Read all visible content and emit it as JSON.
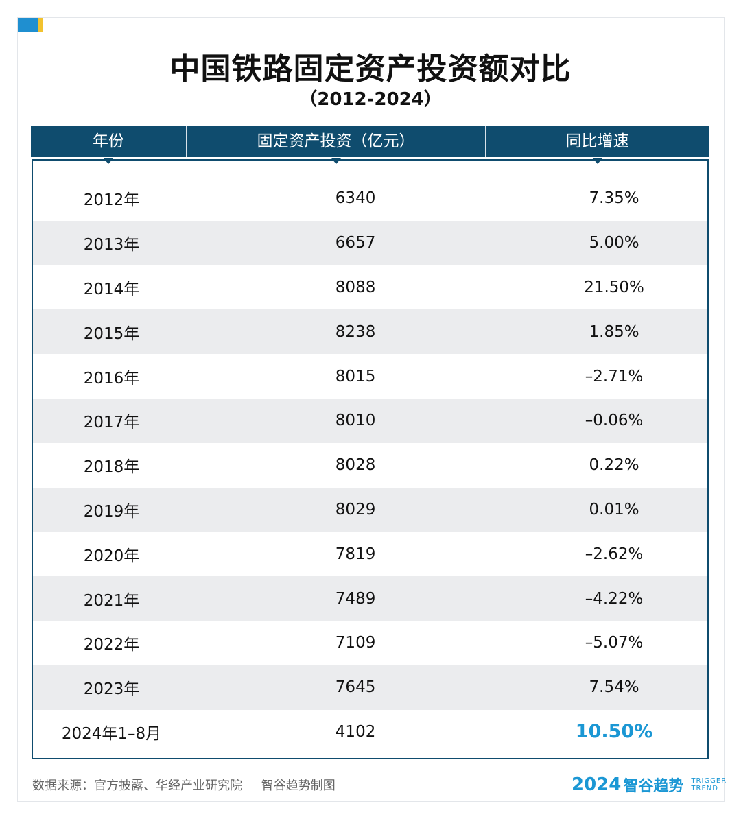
{
  "title": "中国铁路固定资产投资额对比",
  "subtitle": "（2012-2024）",
  "chart_data": {
    "type": "table",
    "columns": [
      "年份",
      "固定资产投资（亿元）",
      "同比增速"
    ],
    "rows": [
      {
        "year": "2012年",
        "investment": "6340",
        "growth": "7.35%"
      },
      {
        "year": "2013年",
        "investment": "6657",
        "growth": "5.00%"
      },
      {
        "year": "2014年",
        "investment": "8088",
        "growth": "21.50%"
      },
      {
        "year": "2015年",
        "investment": "8238",
        "growth": "1.85%"
      },
      {
        "year": "2016年",
        "investment": "8015",
        "growth": "–2.71%"
      },
      {
        "year": "2017年",
        "investment": "8010",
        "growth": "–0.06%"
      },
      {
        "year": "2018年",
        "investment": "8028",
        "growth": "0.22%"
      },
      {
        "year": "2019年",
        "investment": "8029",
        "growth": "0.01%"
      },
      {
        "year": "2020年",
        "investment": "7819",
        "growth": "–2.62%"
      },
      {
        "year": "2021年",
        "investment": "7489",
        "growth": "–4.22%"
      },
      {
        "year": "2022年",
        "investment": "7109",
        "growth": "–5.07%"
      },
      {
        "year": "2023年",
        "investment": "7645",
        "growth": "7.54%"
      },
      {
        "year": "2024年1–8月",
        "investment": "4102",
        "growth": "10.50%"
      }
    ],
    "highlight_color": "#1b97d4"
  },
  "colors": {
    "header_bg": "#0f4c6e",
    "accent_blue": "#1f8fd0",
    "accent_yellow": "#f2c22e",
    "row_alt": "#ebecee"
  },
  "footer": {
    "source": "数据来源：官方披露、华经产业研究院",
    "credit": "智谷趋势制图"
  },
  "brand": {
    "year": "2024",
    "name": "智谷趋势",
    "en_line1": "TRIGGER",
    "en_line2": "TREND"
  }
}
